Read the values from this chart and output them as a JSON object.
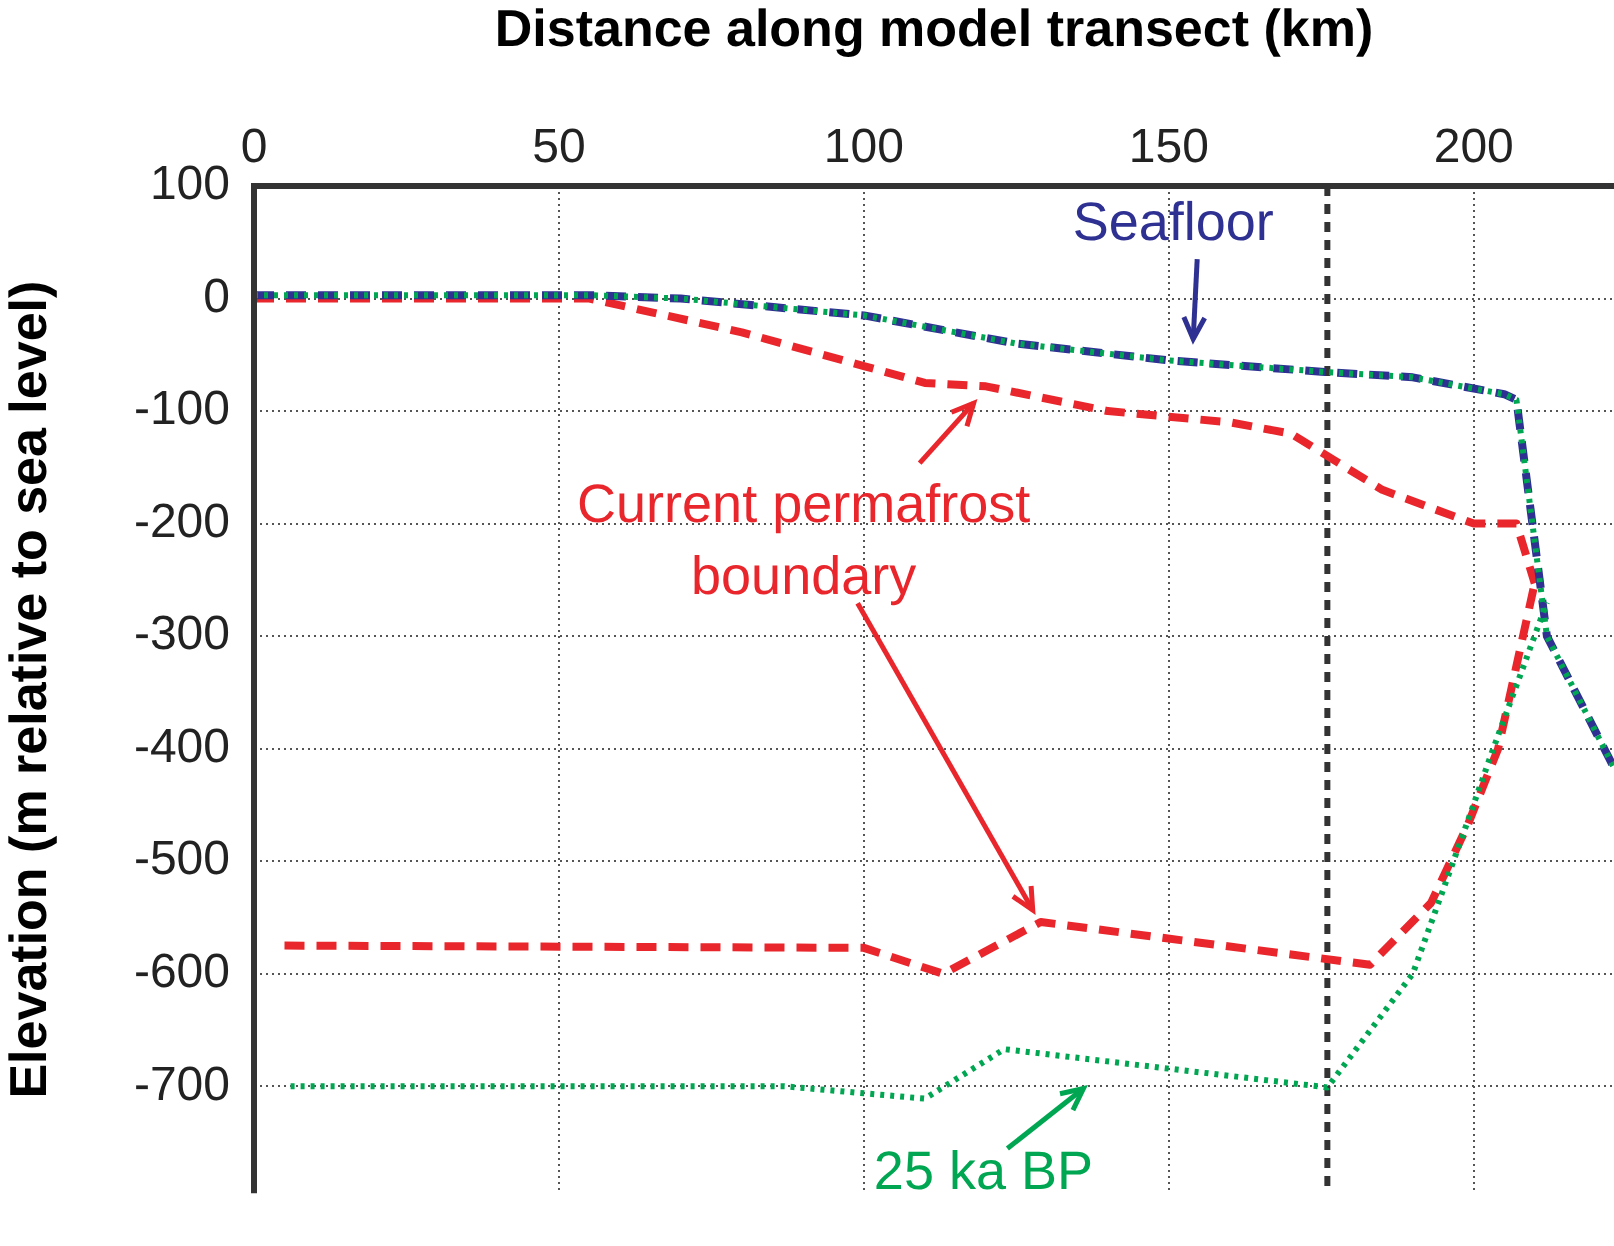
{
  "chart_data": {
    "type": "line",
    "xlabel": "Distance along model transect (km)",
    "ylabel": "Elevation (m relative to sea level)",
    "xlim": [
      0,
      223
    ],
    "xticks": [
      0,
      50,
      100,
      150,
      200
    ],
    "ylim": [
      -795,
      100
    ],
    "yticks": [
      100,
      0,
      -100,
      -200,
      -300,
      -400,
      -500,
      -600,
      -700
    ],
    "grid": true,
    "legend": false,
    "marker": "none",
    "series": [
      {
        "color": "#00a651",
        "line_style": "dotted",
        "x": [
          6,
          87,
          110,
          123,
          176,
          190,
          198,
          203,
          212
        ],
        "values": [
          -700,
          -700,
          -711,
          -667,
          -701,
          -600,
          -480,
          -403,
          -270
        ]
      },
      {
        "color": "#00a651",
        "line_style": "dotted",
        "x": [
          0,
          55,
          70,
          100,
          125,
          150,
          175,
          190,
          205,
          207,
          212,
          223
        ],
        "values": [
          3,
          3,
          0,
          -15,
          -40,
          -55,
          -65,
          -70,
          -85,
          -90,
          -300,
          -417
        ]
      },
      {
        "color": "#2e3192",
        "line_style": "dashed",
        "x": [
          0,
          55,
          70,
          100,
          125,
          150,
          175,
          190,
          205,
          207,
          212,
          223
        ],
        "values": [
          3,
          3,
          0,
          -15,
          -40,
          -55,
          -65,
          -70,
          -85,
          -90,
          -300,
          -417
        ]
      },
      {
        "color": "#e8262b",
        "line_style": "dashed",
        "x": [
          0,
          55,
          80,
          100,
          110,
          120,
          140,
          160,
          170,
          185,
          200,
          207,
          210
        ],
        "values": [
          0,
          0,
          -30,
          -60,
          -75,
          -78,
          -100,
          -110,
          -120,
          -170,
          -200,
          -200,
          -253
        ]
      },
      {
        "color": "#e8262b",
        "line_style": "dashed",
        "x": [
          5,
          100,
          113,
          129,
          183,
          193,
          199,
          204,
          210
        ],
        "values": [
          -575,
          -577,
          -600,
          -554,
          -592,
          -537,
          -468,
          -400,
          -253
        ]
      }
    ],
    "ref_lines": [
      {
        "axis": "x",
        "value": 176,
        "color": "#333333",
        "line_style": "dashed"
      }
    ],
    "annotations": [
      "Seafloor",
      {
        "text": "Current permafrost boundary",
        "x": 129,
        "y": -554
      },
      "25 ka BP"
    ]
  }
}
